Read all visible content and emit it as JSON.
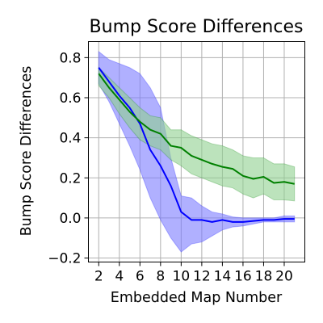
{
  "chart_data": {
    "type": "line",
    "title": "Bump Score Differences",
    "xlabel": "Embedded Map Number",
    "ylabel": "Bump Score Differences",
    "xlim": [
      1,
      22
    ],
    "ylim": [
      -0.22,
      0.88
    ],
    "xticks": [
      2,
      4,
      6,
      8,
      10,
      12,
      14,
      16,
      18,
      20
    ],
    "xtick_labels": [
      "2",
      "4",
      "6",
      "8",
      "10",
      "12",
      "14",
      "16",
      "18",
      "20"
    ],
    "yticks": [
      -0.2,
      0.0,
      0.2,
      0.4,
      0.6,
      0.8
    ],
    "ytick_labels": [
      "−0.2",
      "0.0",
      "0.2",
      "0.4",
      "0.6",
      "0.8"
    ],
    "grid": true,
    "x": [
      2,
      3,
      4,
      5,
      6,
      7,
      8,
      9,
      10,
      11,
      12,
      13,
      14,
      15,
      16,
      17,
      18,
      19,
      20,
      21
    ],
    "series": [
      {
        "color": "#0000ff",
        "band_color": "#7b7bff",
        "values": [
          0.75,
          0.68,
          0.61,
          0.55,
          0.47,
          0.34,
          0.26,
          0.16,
          0.03,
          -0.01,
          -0.01,
          -0.02,
          -0.01,
          -0.02,
          -0.02,
          -0.015,
          -0.01,
          -0.01,
          -0.005,
          -0.005
        ],
        "upper": [
          0.83,
          0.79,
          0.77,
          0.75,
          0.72,
          0.65,
          0.55,
          0.3,
          0.11,
          0.1,
          0.06,
          0.03,
          0.02,
          0.005,
          0.0,
          0.0,
          0.0,
          0.0,
          0.01,
          0.01
        ],
        "lower": [
          0.67,
          0.58,
          0.47,
          0.36,
          0.24,
          0.1,
          -0.01,
          -0.1,
          -0.17,
          -0.13,
          -0.12,
          -0.09,
          -0.06,
          -0.045,
          -0.04,
          -0.03,
          -0.02,
          -0.02,
          -0.02,
          -0.02
        ]
      },
      {
        "color": "#008000",
        "band_color": "#8fd18f",
        "values": [
          0.72,
          0.65,
          0.59,
          0.53,
          0.48,
          0.44,
          0.42,
          0.36,
          0.35,
          0.31,
          0.29,
          0.27,
          0.255,
          0.245,
          0.21,
          0.195,
          0.205,
          0.175,
          0.18,
          0.17
        ],
        "upper": [
          0.75,
          0.7,
          0.65,
          0.6,
          0.55,
          0.51,
          0.5,
          0.44,
          0.44,
          0.41,
          0.39,
          0.37,
          0.36,
          0.34,
          0.31,
          0.3,
          0.3,
          0.27,
          0.27,
          0.255
        ],
        "lower": [
          0.66,
          0.6,
          0.52,
          0.45,
          0.39,
          0.36,
          0.34,
          0.29,
          0.26,
          0.22,
          0.2,
          0.18,
          0.16,
          0.15,
          0.12,
          0.1,
          0.12,
          0.09,
          0.09,
          0.085
        ]
      }
    ]
  }
}
